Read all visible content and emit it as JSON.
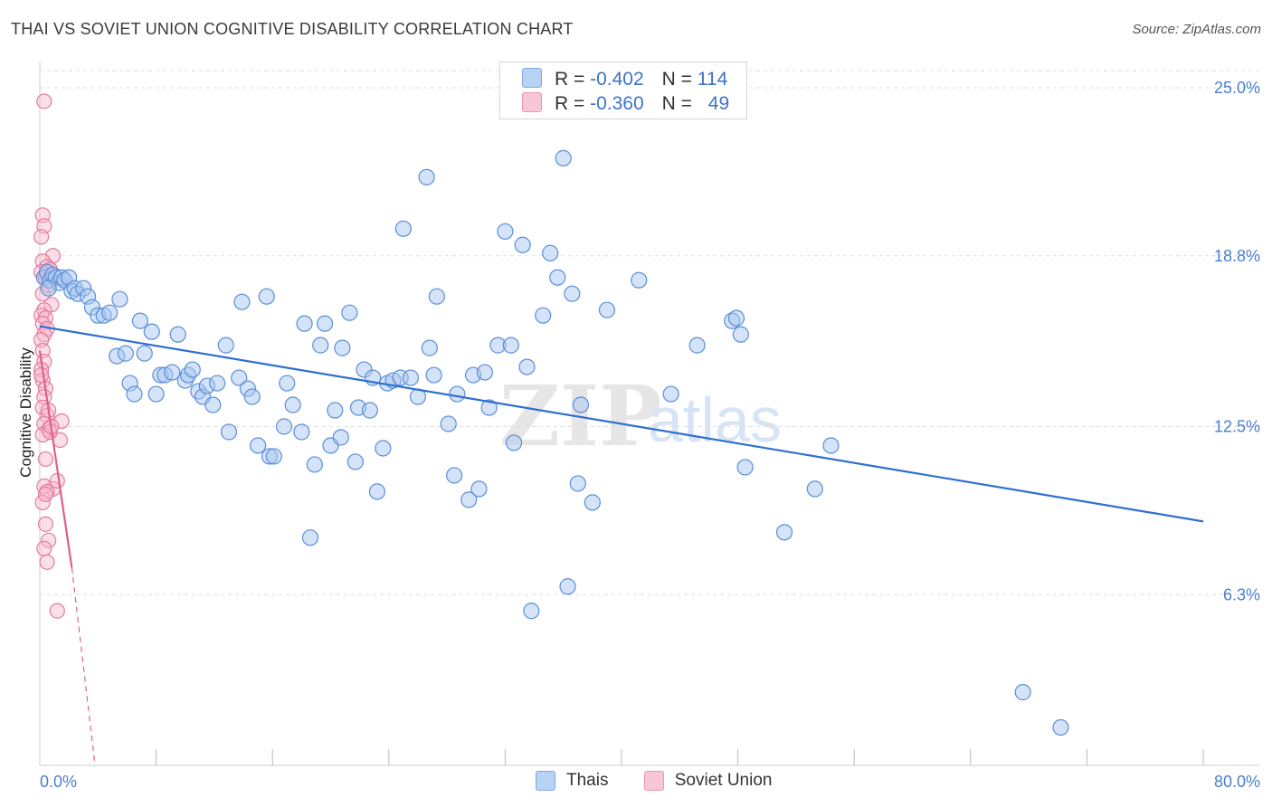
{
  "header": {
    "title": "THAI VS SOVIET UNION COGNITIVE DISABILITY CORRELATION CHART",
    "source": "Source: ZipAtlas.com"
  },
  "legend_top": {
    "rows": [
      {
        "r_label": "R = ",
        "r_value": "-0.402",
        "n_label": "N = ",
        "n_value": "114"
      },
      {
        "r_label": "R = ",
        "r_value": "-0.360",
        "n_label": "N = ",
        "n_value": "49"
      }
    ]
  },
  "legend_bottom": {
    "items": [
      "Thais",
      "Soviet Union"
    ]
  },
  "watermark": {
    "part1": "ZIP",
    "part2": "atlas"
  },
  "colors": {
    "thais_fill": "#a9c8f0",
    "thais_stroke": "#5b8ed8",
    "thais_line": "#2f6fd0",
    "soviet_fill": "#f7b9cc",
    "soviet_stroke": "#e57a9c",
    "soviet_line": "#e0608a",
    "tick_text": "#4a7fd0",
    "grid": "#dddddd"
  },
  "chart_data": {
    "type": "scatter",
    "title": "THAI VS SOVIET UNION COGNITIVE DISABILITY CORRELATION CHART",
    "xlabel": "",
    "ylabel": "Cognitive Disability",
    "xlim": [
      0,
      80
    ],
    "ylim": [
      0,
      25.5
    ],
    "x_tick_labels": [
      "0.0%",
      "80.0%"
    ],
    "y_ticks": [
      6.3,
      12.5,
      18.8,
      25.0
    ],
    "y_tick_labels": [
      "6.3%",
      "12.5%",
      "18.8%",
      "25.0%"
    ],
    "grid": true,
    "legend_position": "top-center",
    "series": [
      {
        "name": "Thais",
        "R": -0.402,
        "N": 114,
        "trend": {
          "x": [
            0,
            80
          ],
          "y": [
            16.2,
            9.0
          ]
        },
        "points": [
          [
            0.3,
            18.0
          ],
          [
            0.5,
            18.2
          ],
          [
            0.7,
            17.9
          ],
          [
            0.9,
            18.1
          ],
          [
            1.1,
            18.0
          ],
          [
            1.3,
            17.8
          ],
          [
            1.5,
            18.0
          ],
          [
            1.7,
            17.9
          ],
          [
            2.0,
            18.0
          ],
          [
            2.2,
            17.5
          ],
          [
            2.4,
            17.6
          ],
          [
            2.6,
            17.4
          ],
          [
            3.0,
            17.6
          ],
          [
            3.3,
            17.3
          ],
          [
            3.6,
            16.9
          ],
          [
            4.0,
            16.6
          ],
          [
            4.4,
            16.6
          ],
          [
            4.8,
            16.7
          ],
          [
            5.5,
            17.2
          ],
          [
            5.3,
            15.1
          ],
          [
            5.9,
            15.2
          ],
          [
            6.2,
            14.1
          ],
          [
            6.5,
            13.7
          ],
          [
            6.9,
            16.4
          ],
          [
            7.2,
            15.2
          ],
          [
            7.7,
            16.0
          ],
          [
            8.0,
            13.7
          ],
          [
            8.3,
            14.4
          ],
          [
            8.6,
            14.4
          ],
          [
            9.1,
            14.5
          ],
          [
            9.5,
            15.9
          ],
          [
            10.0,
            14.2
          ],
          [
            10.2,
            14.4
          ],
          [
            10.5,
            14.6
          ],
          [
            10.9,
            13.8
          ],
          [
            11.2,
            13.6
          ],
          [
            11.5,
            14.0
          ],
          [
            11.9,
            13.3
          ],
          [
            12.2,
            14.1
          ],
          [
            12.8,
            15.5
          ],
          [
            13.0,
            12.3
          ],
          [
            13.7,
            14.3
          ],
          [
            13.9,
            17.1
          ],
          [
            14.3,
            13.9
          ],
          [
            14.6,
            13.6
          ],
          [
            15.0,
            11.8
          ],
          [
            15.6,
            17.3
          ],
          [
            15.8,
            11.4
          ],
          [
            16.1,
            11.4
          ],
          [
            16.8,
            12.5
          ],
          [
            17.0,
            14.1
          ],
          [
            17.4,
            13.3
          ],
          [
            18.0,
            12.3
          ],
          [
            18.2,
            16.3
          ],
          [
            18.6,
            8.4
          ],
          [
            18.9,
            11.1
          ],
          [
            19.3,
            15.5
          ],
          [
            19.6,
            16.3
          ],
          [
            20.0,
            11.8
          ],
          [
            20.3,
            13.1
          ],
          [
            20.7,
            12.1
          ],
          [
            20.8,
            15.4
          ],
          [
            21.3,
            16.7
          ],
          [
            21.7,
            11.2
          ],
          [
            21.9,
            13.2
          ],
          [
            22.3,
            14.6
          ],
          [
            22.7,
            13.1
          ],
          [
            22.9,
            14.3
          ],
          [
            23.2,
            10.1
          ],
          [
            23.6,
            11.7
          ],
          [
            23.9,
            14.1
          ],
          [
            24.3,
            14.2
          ],
          [
            24.8,
            14.3
          ],
          [
            25.0,
            19.8
          ],
          [
            25.5,
            14.3
          ],
          [
            26.0,
            13.6
          ],
          [
            26.6,
            21.7
          ],
          [
            26.8,
            15.4
          ],
          [
            27.1,
            14.4
          ],
          [
            27.3,
            17.3
          ],
          [
            28.1,
            12.6
          ],
          [
            28.5,
            10.7
          ],
          [
            28.7,
            13.7
          ],
          [
            29.5,
            9.8
          ],
          [
            29.8,
            14.4
          ],
          [
            30.2,
            10.2
          ],
          [
            30.6,
            14.5
          ],
          [
            30.9,
            13.2
          ],
          [
            31.5,
            15.5
          ],
          [
            32.0,
            19.7
          ],
          [
            32.4,
            15.5
          ],
          [
            32.6,
            11.9
          ],
          [
            33.2,
            19.2
          ],
          [
            33.5,
            14.7
          ],
          [
            33.8,
            5.7
          ],
          [
            34.6,
            16.6
          ],
          [
            35.1,
            18.9
          ],
          [
            35.6,
            18.0
          ],
          [
            36.0,
            22.4
          ],
          [
            36.3,
            6.6
          ],
          [
            36.6,
            17.4
          ],
          [
            37.0,
            10.4
          ],
          [
            37.2,
            13.3
          ],
          [
            38.0,
            9.7
          ],
          [
            39.0,
            16.8
          ],
          [
            41.2,
            17.9
          ],
          [
            43.4,
            13.7
          ],
          [
            45.2,
            15.5
          ],
          [
            47.6,
            16.4
          ],
          [
            47.9,
            16.5
          ],
          [
            48.2,
            15.9
          ],
          [
            48.5,
            11.0
          ],
          [
            51.2,
            8.6
          ],
          [
            53.3,
            10.2
          ],
          [
            54.4,
            11.8
          ],
          [
            67.6,
            2.7
          ],
          [
            70.2,
            1.4
          ],
          [
            0.6,
            17.6
          ]
        ]
      },
      {
        "name": "Soviet Union",
        "R": -0.36,
        "N": 49,
        "trend": {
          "x": [
            0,
            2.2
          ],
          "y": [
            15.3,
            7.3
          ]
        },
        "trend_dashed": {
          "x": [
            2.2,
            3.8
          ],
          "y": [
            7.3,
            0
          ]
        },
        "points": [
          [
            0.3,
            24.5
          ],
          [
            0.2,
            20.3
          ],
          [
            0.3,
            19.9
          ],
          [
            0.1,
            19.5
          ],
          [
            0.9,
            18.8
          ],
          [
            0.2,
            18.6
          ],
          [
            0.5,
            18.4
          ],
          [
            0.7,
            18.3
          ],
          [
            0.1,
            18.2
          ],
          [
            0.4,
            18.0
          ],
          [
            0.6,
            17.7
          ],
          [
            0.2,
            17.4
          ],
          [
            0.8,
            17.0
          ],
          [
            0.3,
            16.8
          ],
          [
            0.1,
            16.6
          ],
          [
            0.4,
            16.5
          ],
          [
            0.2,
            16.3
          ],
          [
            0.5,
            16.1
          ],
          [
            0.3,
            15.9
          ],
          [
            0.1,
            15.7
          ],
          [
            0.2,
            15.3
          ],
          [
            0.3,
            14.9
          ],
          [
            0.1,
            14.6
          ],
          [
            0.2,
            14.2
          ],
          [
            0.4,
            13.9
          ],
          [
            0.3,
            13.6
          ],
          [
            0.2,
            13.2
          ],
          [
            0.5,
            12.9
          ],
          [
            0.3,
            12.6
          ],
          [
            1.5,
            12.7
          ],
          [
            0.6,
            12.4
          ],
          [
            0.2,
            12.2
          ],
          [
            1.4,
            12.0
          ],
          [
            0.7,
            12.3
          ],
          [
            0.9,
            10.2
          ],
          [
            1.2,
            10.5
          ],
          [
            0.4,
            11.3
          ],
          [
            0.3,
            10.3
          ],
          [
            0.5,
            10.1
          ],
          [
            0.2,
            9.7
          ],
          [
            0.4,
            8.9
          ],
          [
            0.6,
            8.3
          ],
          [
            0.3,
            8.0
          ],
          [
            0.5,
            7.5
          ],
          [
            1.2,
            5.7
          ],
          [
            0.8,
            12.5
          ],
          [
            0.6,
            13.1
          ],
          [
            0.1,
            14.4
          ],
          [
            0.4,
            10.0
          ]
        ]
      }
    ]
  }
}
